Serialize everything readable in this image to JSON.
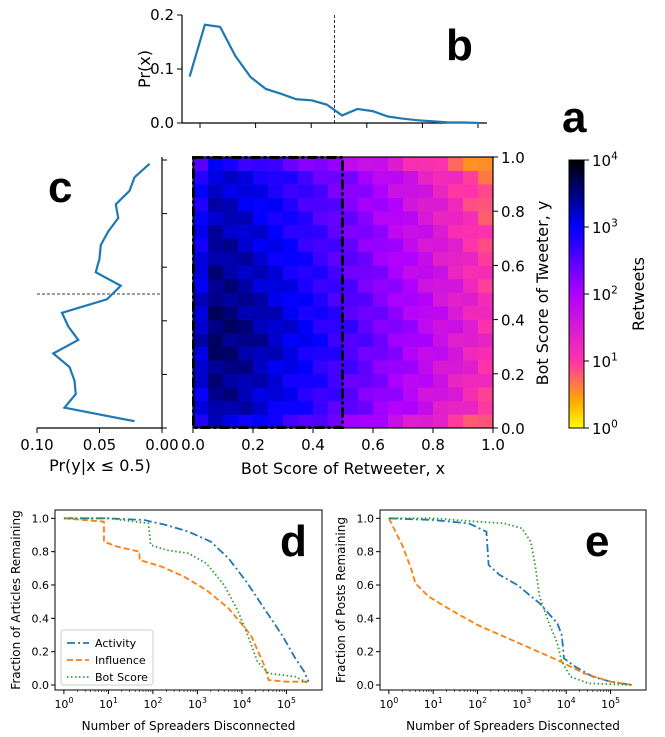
{
  "panel_labels": {
    "a": "a",
    "b": "b",
    "c": "c",
    "d": "d",
    "e": "e"
  },
  "colors": {
    "blue": "#1f77b4",
    "orange": "#ff7f0e",
    "green": "#2ca02c"
  },
  "chart_data": [
    {
      "id": "b",
      "type": "line",
      "ylabel": "Pr(x)",
      "xlim": [
        0,
        1
      ],
      "ylim": [
        0,
        0.2
      ],
      "y_ticks": [
        0.0,
        0.1,
        0.2
      ],
      "y_tick_labels": [
        "0.0",
        "0.1",
        "0.2"
      ],
      "x_ticks": [
        0,
        0.2,
        0.4,
        0.6,
        0.8,
        1.0
      ],
      "threshold": 0.5,
      "x": [
        0.025,
        0.075,
        0.125,
        0.175,
        0.225,
        0.275,
        0.325,
        0.375,
        0.425,
        0.475,
        0.525,
        0.575,
        0.625,
        0.675,
        0.725,
        0.775,
        0.825,
        0.875,
        0.925,
        0.975
      ],
      "y": [
        0.086,
        0.182,
        0.178,
        0.124,
        0.085,
        0.063,
        0.054,
        0.044,
        0.042,
        0.034,
        0.014,
        0.026,
        0.022,
        0.012,
        0.008,
        0.005,
        0.003,
        0.001,
        0.001,
        0.0
      ]
    },
    {
      "id": "c",
      "type": "line",
      "xlabel": "Pr(y|x ≤ 0.5)",
      "xlim": [
        0.1,
        0.0
      ],
      "ylim": [
        0,
        1
      ],
      "x_ticks": [
        0.1,
        0.05,
        0.0
      ],
      "x_tick_labels": [
        "0.10",
        "0.05",
        "0.00"
      ],
      "threshold": 0.5,
      "y": [
        0.025,
        0.075,
        0.125,
        0.175,
        0.225,
        0.275,
        0.325,
        0.375,
        0.425,
        0.475,
        0.525,
        0.575,
        0.625,
        0.675,
        0.725,
        0.775,
        0.825,
        0.875,
        0.925,
        0.975
      ],
      "x": [
        0.022,
        0.078,
        0.069,
        0.07,
        0.074,
        0.087,
        0.067,
        0.075,
        0.08,
        0.044,
        0.033,
        0.053,
        0.05,
        0.049,
        0.043,
        0.035,
        0.037,
        0.026,
        0.022,
        0.01
      ]
    },
    {
      "id": "a",
      "type": "heatmap",
      "xlabel": "Bot Score of Retweeter, x",
      "ylabel": "Bot Score of Tweeter, y",
      "colorbar_label": "Retweets",
      "colorbar_ticks": [
        "10",
        "10",
        "10",
        "10",
        "10"
      ],
      "colorbar_tick_exponents": [
        "4",
        "3",
        "2",
        "1",
        "0"
      ],
      "x_tick_labels": [
        "0.0",
        "0.2",
        "0.4",
        "0.6",
        "0.8",
        "1.0"
      ],
      "y_tick_labels": [
        "0.0",
        "0.2",
        "0.4",
        "0.6",
        "0.8",
        "1.0"
      ],
      "log_min": 0,
      "log_max": 4,
      "threshold": 0.5,
      "bins": 20,
      "note": "log10 retweet counts per 20x20 bin"
    },
    {
      "id": "d",
      "type": "line",
      "xlabel": "Number of Spreaders Disconnected",
      "ylabel": "Fraction of Articles Remaining",
      "xscale": "log",
      "xlim_exp": [
        -0.2,
        5.8
      ],
      "ylim": [
        -0.03,
        1.05
      ],
      "x_tick_labels": [
        "10",
        "10",
        "10",
        "10",
        "10",
        "10"
      ],
      "x_tick_exponents": [
        "0",
        "1",
        "2",
        "3",
        "4",
        "5"
      ],
      "y_tick_labels": [
        "0.0",
        "0.2",
        "0.4",
        "0.6",
        "0.8",
        "1.0"
      ],
      "legend": [
        "Activity",
        "Influence",
        "Bot Score"
      ],
      "legend_loc": "lower left",
      "series": [
        {
          "name": "Activity",
          "log_x": [
            0,
            1,
            1.8,
            2.3,
            2.8,
            3.3,
            3.7,
            4.1,
            4.5,
            4.9,
            5.2,
            5.4,
            5.5
          ],
          "y": [
            1.0,
            1.0,
            0.99,
            0.96,
            0.92,
            0.86,
            0.76,
            0.62,
            0.46,
            0.3,
            0.16,
            0.08,
            0.02
          ]
        },
        {
          "name": "Influence",
          "log_x": [
            0,
            0.9,
            0.9,
            1.2,
            1.7,
            1.7,
            2.2,
            2.7,
            3.2,
            3.7,
            4.2,
            4.5,
            4.6,
            5.0,
            5.5
          ],
          "y": [
            1.0,
            0.98,
            0.86,
            0.83,
            0.8,
            0.75,
            0.71,
            0.65,
            0.57,
            0.46,
            0.3,
            0.12,
            0.03,
            0.02,
            0.02
          ]
        },
        {
          "name": "Bot Score",
          "log_x": [
            0,
            1,
            1.9,
            1.95,
            2.3,
            2.8,
            3.2,
            3.6,
            3.9,
            4.1,
            4.35,
            4.6,
            4.9,
            5.2,
            5.5
          ],
          "y": [
            1.0,
            1.0,
            0.97,
            0.84,
            0.81,
            0.79,
            0.73,
            0.6,
            0.45,
            0.32,
            0.14,
            0.07,
            0.06,
            0.05,
            0.01
          ]
        }
      ]
    },
    {
      "id": "e",
      "type": "line",
      "xlabel": "Number of Spreaders Disconnected",
      "ylabel": "Fraction of Posts Remaining",
      "xscale": "log",
      "xlim_exp": [
        -0.2,
        5.8
      ],
      "ylim": [
        -0.03,
        1.05
      ],
      "x_tick_labels": [
        "10",
        "10",
        "10",
        "10",
        "10",
        "10"
      ],
      "x_tick_exponents": [
        "0",
        "1",
        "2",
        "3",
        "4",
        "5"
      ],
      "y_tick_labels": [
        "0.0",
        "0.2",
        "0.4",
        "0.6",
        "0.8",
        "1.0"
      ],
      "series": [
        {
          "name": "Activity",
          "log_x": [
            0,
            1,
            1.8,
            2.2,
            2.25,
            2.5,
            2.9,
            3.4,
            3.8,
            3.9,
            3.95,
            4.2,
            4.6,
            5.0,
            5.5
          ],
          "y": [
            1.0,
            0.99,
            0.97,
            0.92,
            0.72,
            0.66,
            0.6,
            0.49,
            0.37,
            0.3,
            0.16,
            0.11,
            0.05,
            0.02,
            0.0
          ]
        },
        {
          "name": "Influence",
          "log_x": [
            0,
            0.3,
            0.5,
            0.6,
            0.9,
            1.4,
            2.0,
            2.6,
            3.2,
            3.8,
            4.4,
            5.0,
            5.5
          ],
          "y": [
            1.0,
            0.84,
            0.7,
            0.61,
            0.53,
            0.45,
            0.36,
            0.29,
            0.22,
            0.15,
            0.07,
            0.02,
            0.0
          ]
        },
        {
          "name": "Bot Score",
          "log_x": [
            0,
            1,
            2.0,
            2.6,
            3.0,
            3.2,
            3.3,
            3.4,
            3.6,
            3.8,
            3.9,
            4.1,
            4.5,
            5.5
          ],
          "y": [
            1.0,
            1.0,
            0.98,
            0.97,
            0.94,
            0.86,
            0.72,
            0.53,
            0.38,
            0.25,
            0.14,
            0.05,
            0.01,
            0.0
          ]
        }
      ]
    }
  ]
}
